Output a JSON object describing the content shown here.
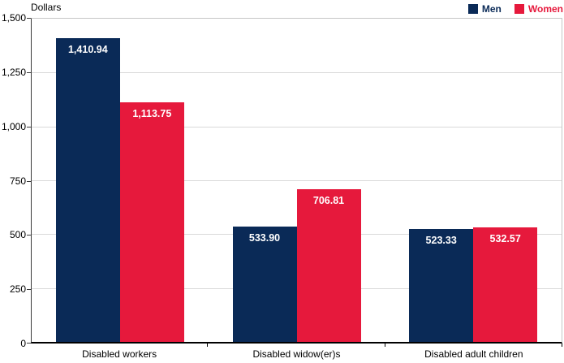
{
  "unit_label": "Dollars",
  "colors": {
    "men": "#0a2a57",
    "women": "#e6193c",
    "gridline": "#d9d9d9",
    "plot_border": "#c6c6c6",
    "axis": "#000000",
    "bar_value_text": "#ffffff"
  },
  "legend": {
    "position": "top-right",
    "items": [
      {
        "label": "Men",
        "color": "#0a2a57"
      },
      {
        "label": "Women",
        "color": "#e6193c"
      }
    ]
  },
  "chart_data": {
    "type": "bar",
    "title": "",
    "xlabel": "",
    "ylabel": "Dollars",
    "ylim": [
      0,
      1500
    ],
    "yticks": [
      0,
      250,
      500,
      750,
      1000,
      1250,
      1500
    ],
    "ytick_labels": [
      "0",
      "250",
      "500",
      "750",
      "1,000",
      "1,250",
      "1,500"
    ],
    "grid": true,
    "legend_position": "top-right",
    "categories": [
      "Disabled workers",
      "Disabled widow(er)s",
      "Disabled adult children"
    ],
    "series": [
      {
        "name": "Men",
        "color": "#0a2a57",
        "values": [
          1410.94,
          533.9,
          523.33
        ],
        "labels": [
          "1,410.94",
          "533.90",
          "523.33"
        ]
      },
      {
        "name": "Women",
        "color": "#e6193c",
        "values": [
          1113.75,
          706.81,
          532.57
        ],
        "labels": [
          "1,113.75",
          "706.81",
          "532.57"
        ]
      }
    ]
  }
}
